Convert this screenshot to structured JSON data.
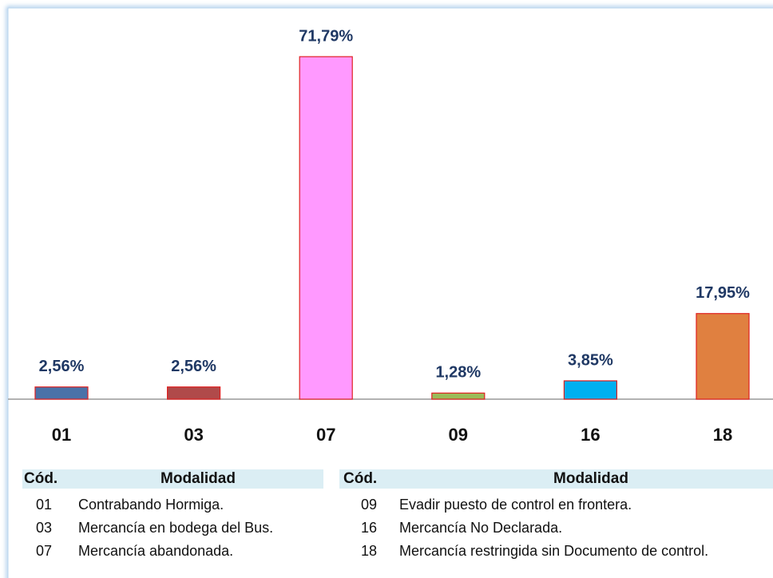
{
  "chart_data": {
    "type": "bar",
    "categories": [
      "01",
      "03",
      "07",
      "09",
      "16",
      "18"
    ],
    "values": [
      2.56,
      2.56,
      71.79,
      1.28,
      3.85,
      17.95
    ],
    "value_labels": [
      "2,56%",
      "2,56%",
      "71,79%",
      "1,28%",
      "3,85%",
      "17,95%"
    ],
    "colors": [
      "#4a72a8",
      "#b04a4a",
      "#ff99ff",
      "#9bbb59",
      "#00b0f0",
      "#e08040"
    ]
  },
  "tables": [
    {
      "header": [
        "Cód.",
        "Modalidad"
      ],
      "rows": [
        [
          "01",
          "Contrabando Hormiga."
        ],
        [
          "03",
          "Mercancía en bodega del Bus."
        ],
        [
          "07",
          "Mercancía abandonada."
        ]
      ]
    },
    {
      "header": [
        "Cód.",
        "Modalidad"
      ],
      "rows": [
        [
          "09",
          "Evadir puesto de control en frontera."
        ],
        [
          "16",
          "Mercancía No Declarada."
        ],
        [
          "18",
          "Mercancía restringida sin Documento de control."
        ]
      ]
    }
  ]
}
